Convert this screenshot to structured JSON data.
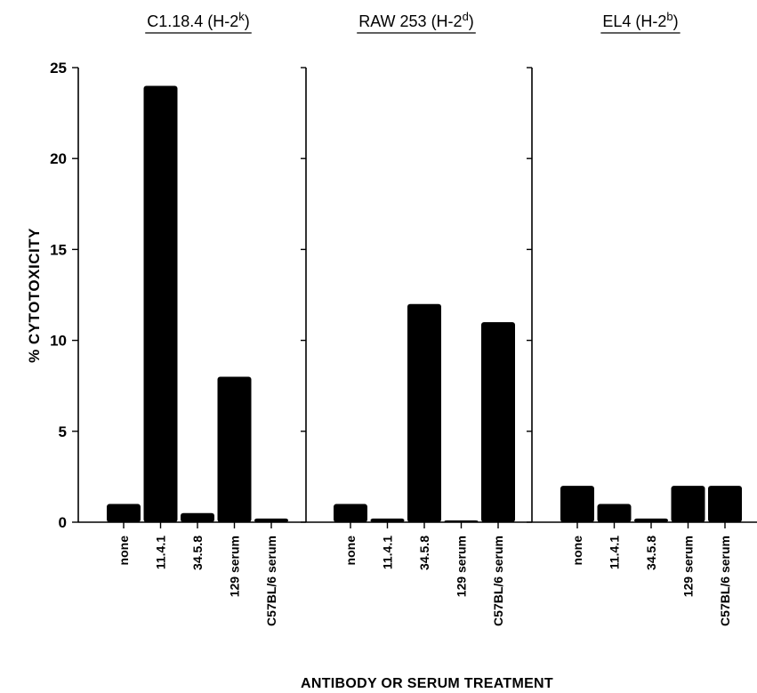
{
  "chart_data": {
    "type": "bar",
    "ylabel": "% CYTOTOXICITY",
    "xlabel": "ANTIBODY OR SERUM TREATMENT",
    "ylim": [
      0,
      25
    ],
    "yticks": [
      0,
      5,
      10,
      15,
      20,
      25
    ],
    "grid": false,
    "bar_color": "#000000",
    "categories": [
      "none",
      "11.4.1",
      "34.5.8",
      "129 serum",
      "C57BL/6 serum"
    ],
    "panels": [
      {
        "title": "C1.18.4",
        "haplotype_base": "(H-2",
        "haplotype_sup": "k",
        "haplotype_close": ")",
        "values": [
          1,
          24,
          0.5,
          8,
          0.2
        ]
      },
      {
        "title": "RAW 253",
        "haplotype_base": "(H-2",
        "haplotype_sup": "d",
        "haplotype_close": ")",
        "values": [
          1,
          0.2,
          12,
          0.1,
          11
        ]
      },
      {
        "title": "EL4",
        "haplotype_base": "(H-2",
        "haplotype_sup": "b",
        "haplotype_close": ")",
        "values": [
          2,
          1,
          0.2,
          2,
          2
        ]
      }
    ]
  }
}
